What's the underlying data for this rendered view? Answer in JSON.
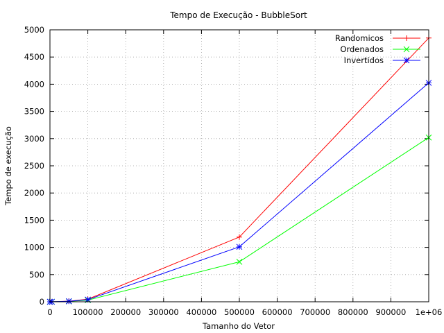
{
  "chart_data": {
    "type": "line",
    "title": "Tempo de Execução - BubbleSort",
    "xlabel": "Tamanho do Vetor",
    "ylabel": "Tempo de execução",
    "xlim": [
      0,
      1000000
    ],
    "ylim": [
      0,
      5000
    ],
    "x_ticks": [
      0,
      100000,
      200000,
      300000,
      400000,
      500000,
      600000,
      700000,
      800000,
      900000,
      1000000
    ],
    "x_tick_labels": [
      "0",
      "100000",
      "200000",
      "300000",
      "400000",
      "500000",
      "600000",
      "700000",
      "800000",
      "900000",
      "1e+06"
    ],
    "y_ticks": [
      0,
      500,
      1000,
      1500,
      2000,
      2500,
      3000,
      3500,
      4000,
      4500,
      5000
    ],
    "y_tick_labels": [
      "0",
      "500",
      "1000",
      "1500",
      "2000",
      "2500",
      "3000",
      "3500",
      "4000",
      "4500",
      "5000"
    ],
    "grid": true,
    "legend_position": "top-right",
    "x": [
      0,
      5000,
      50000,
      100000,
      500000,
      1000000
    ],
    "series": [
      {
        "name": "Randomicos",
        "color": "#ff0000",
        "marker": "plus",
        "values": [
          0,
          1,
          12,
          48,
          1190,
          4850
        ]
      },
      {
        "name": "Ordenados",
        "color": "#00ff00",
        "marker": "cross",
        "values": [
          0,
          1,
          8,
          30,
          735,
          3020
        ]
      },
      {
        "name": "Invertidos",
        "color": "#0000ff",
        "marker": "star",
        "values": [
          0,
          1,
          10,
          40,
          1010,
          4025
        ]
      }
    ]
  }
}
